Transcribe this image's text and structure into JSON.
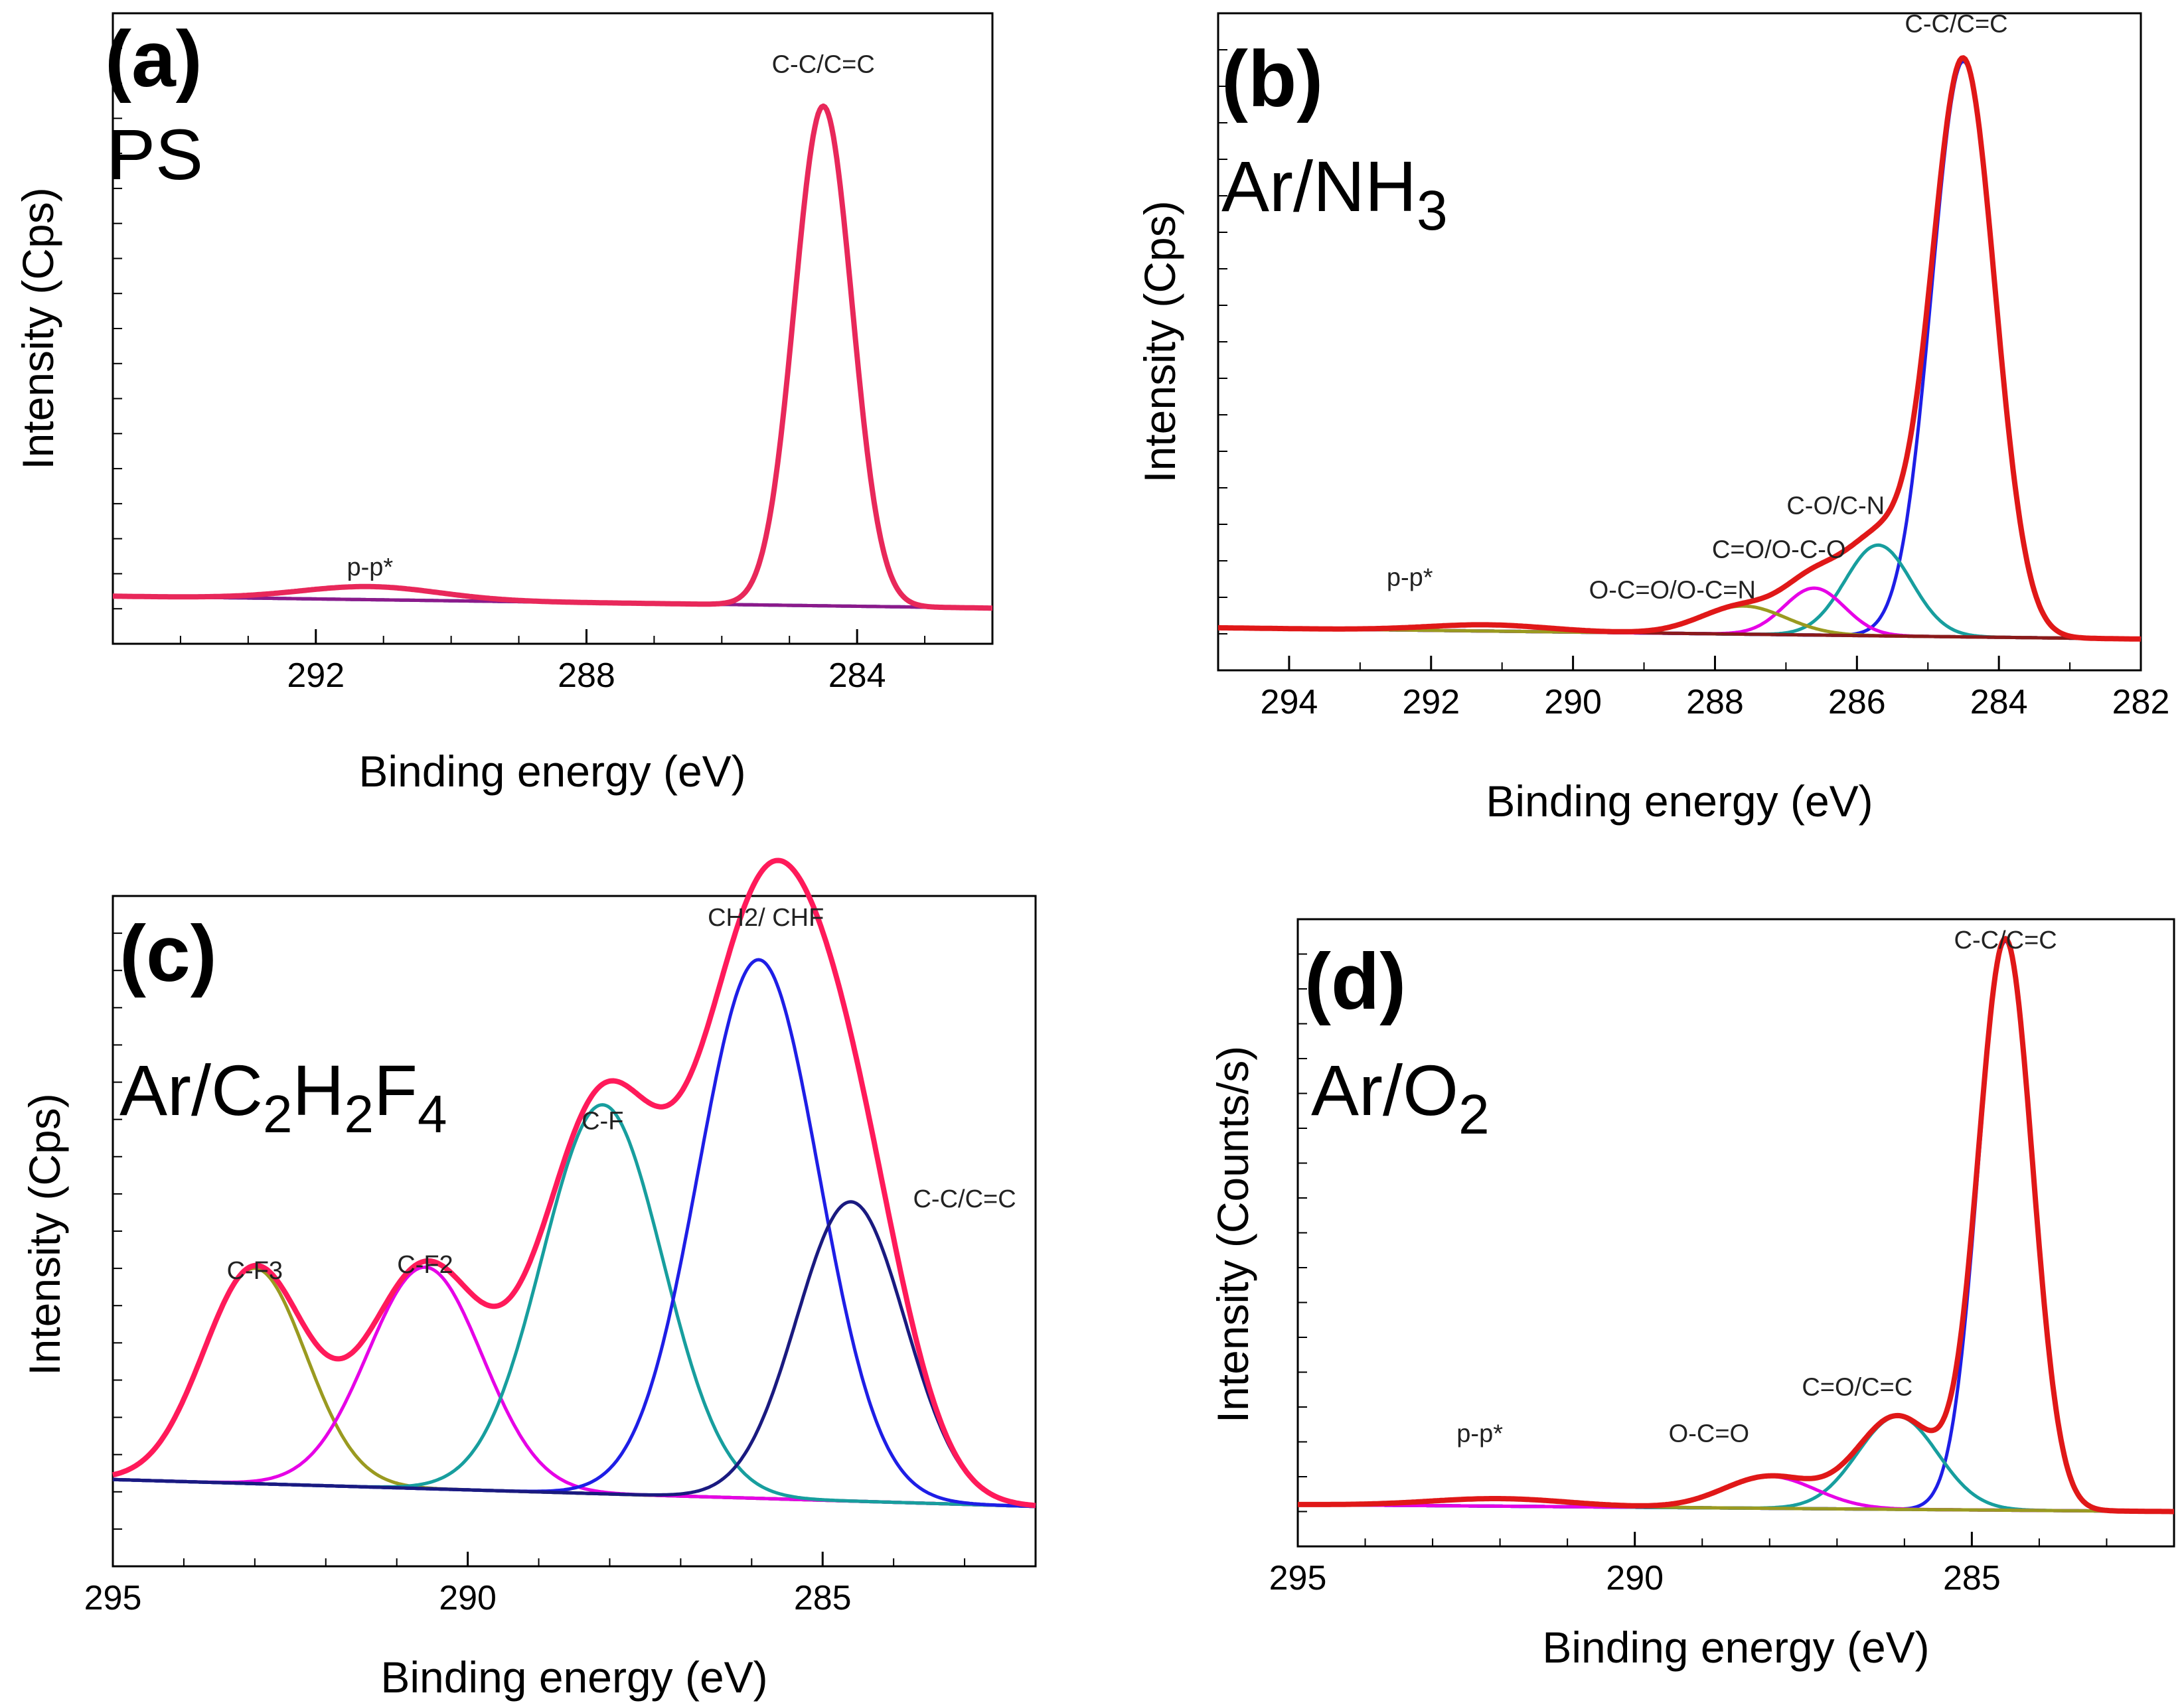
{
  "chart_data": [
    {
      "type": "line",
      "panel": "(a)",
      "sample": "PS",
      "xlabel": "Binding energy (eV)",
      "ylabel": "Intensity (Cps)",
      "xlim": [
        295,
        282
      ],
      "ylim": [
        -0.06,
        1.0
      ],
      "xticks": [
        292,
        288,
        284
      ],
      "peak_labels": [
        {
          "text": "C-C/C=C",
          "x": 284.5,
          "y": 0.9
        },
        {
          "text": "p-p*",
          "x": 291.2,
          "y": 0.055
        }
      ],
      "background": {
        "start": 0.02,
        "end": 0.0
      },
      "components": [
        {
          "name": "C-C/C=C",
          "center": 284.5,
          "height": 0.84,
          "fwhm": 1.0,
          "color": "#8b1a8b"
        },
        {
          "name": "p-p*",
          "center": 291.2,
          "height": 0.022,
          "fwhm": 2.4,
          "color": "#8b1a8b"
        }
      ],
      "envelope_color": "#e8285a"
    },
    {
      "type": "line",
      "panel": "(b)",
      "sample": "Ar/NH3",
      "xlabel": "Binding energy (eV)",
      "ylabel": "Intensity (Cps)",
      "xlim": [
        295,
        282
      ],
      "ylim": [
        -0.05,
        1.0
      ],
      "xticks": [
        294,
        292,
        290,
        288,
        286,
        284,
        282
      ],
      "peak_labels": [
        {
          "text": "C-C/C=C",
          "x": 284.6,
          "y": 0.97
        },
        {
          "text": "C-O/C-N",
          "x": 286.3,
          "y": 0.2
        },
        {
          "text": "C=O/O-C-O",
          "x": 287.1,
          "y": 0.13
        },
        {
          "text": "O-C=O/O-C=N",
          "x": 288.6,
          "y": 0.065
        },
        {
          "text": "p-p*",
          "x": 292.3,
          "y": 0.085
        }
      ],
      "background": {
        "start": 0.018,
        "end": 0.0
      },
      "components": [
        {
          "name": "C-C/C=C",
          "center": 284.5,
          "height": 0.92,
          "fwhm": 1.05,
          "color": "#1e1ee6"
        },
        {
          "name": "C-O/C-N",
          "center": 285.7,
          "height": 0.145,
          "fwhm": 1.1,
          "color": "#179e9e"
        },
        {
          "name": "C=O/O-C-O",
          "center": 286.6,
          "height": 0.075,
          "fwhm": 1.0,
          "color": "#e600e6"
        },
        {
          "name": "O-C=O/O-C=N",
          "center": 287.6,
          "height": 0.045,
          "fwhm": 1.4,
          "color": "#9a9a20"
        },
        {
          "name": "p-p*",
          "center": 291.2,
          "height": 0.01,
          "fwhm": 2.0,
          "color": "#8a1a1a"
        }
      ],
      "envelope_color": "#e01818"
    },
    {
      "type": "line",
      "panel": "(c)",
      "sample": "Ar/C2H2F4",
      "xlabel": "Binding energy (eV)",
      "ylabel": "Intensity (Cps)",
      "xlim": [
        295,
        282
      ],
      "ylim": [
        -0.1,
        1.02
      ],
      "xticks": [
        295,
        290,
        285
      ],
      "peak_labels": [
        {
          "text": "C-F3",
          "x": 293.0,
          "y": 0.38
        },
        {
          "text": "C-F2",
          "x": 290.6,
          "y": 0.39
        },
        {
          "text": "C-F",
          "x": 288.1,
          "y": 0.63
        },
        {
          "text": "CH2/ CHF",
          "x": 285.8,
          "y": 0.97
        },
        {
          "text": "C-C/C=C",
          "x": 283.0,
          "y": 0.5
        }
      ],
      "background": {
        "start": 0.045,
        "end": 0.0
      },
      "components": [
        {
          "name": "C-F3",
          "center": 293.0,
          "height": 0.36,
          "fwhm": 1.7,
          "color": "#9a9a20"
        },
        {
          "name": "C-F2",
          "center": 290.6,
          "height": 0.37,
          "fwhm": 1.9,
          "color": "#e600e6"
        },
        {
          "name": "C-F",
          "center": 288.1,
          "height": 0.65,
          "fwhm": 2.0,
          "color": "#179e9e"
        },
        {
          "name": "CH2/ CHF",
          "center": 285.9,
          "height": 0.9,
          "fwhm": 2.0,
          "color": "#1e1ee6"
        },
        {
          "name": "C-C/C=C",
          "center": 284.6,
          "height": 0.5,
          "fwhm": 1.8,
          "color": "#1a1a80"
        }
      ],
      "envelope_color": "#ff1a5a"
    },
    {
      "type": "line",
      "panel": "(d)",
      "sample": "Ar/O2",
      "xlabel": "Binding energy (eV)",
      "ylabel": "Intensity (Counts/s)",
      "xlim": [
        295,
        282
      ],
      "ylim": [
        -0.06,
        1.02
      ],
      "xticks": [
        295,
        290,
        285
      ],
      "peak_labels": [
        {
          "text": "C-C/C=C",
          "x": 284.5,
          "y": 0.97
        },
        {
          "text": "C=O/C=C",
          "x": 286.7,
          "y": 0.2
        },
        {
          "text": "O-C=O",
          "x": 288.9,
          "y": 0.12
        },
        {
          "text": "p-p*",
          "x": 292.3,
          "y": 0.12
        }
      ],
      "background": {
        "start": 0.012,
        "end": 0.0
      },
      "components": [
        {
          "name": "C-C/C=C",
          "center": 284.5,
          "height": 0.98,
          "fwhm": 0.95,
          "color": "#1e1ee6"
        },
        {
          "name": "C=O/C=C",
          "center": 286.1,
          "height": 0.16,
          "fwhm": 1.4,
          "color": "#179e9e"
        },
        {
          "name": "O-C=O",
          "center": 288.0,
          "height": 0.055,
          "fwhm": 1.6,
          "color": "#e600e6"
        },
        {
          "name": "p-p*",
          "center": 292.0,
          "height": 0.013,
          "fwhm": 2.4,
          "color": "#9a9a20"
        }
      ],
      "envelope_color": "#e01818"
    }
  ]
}
